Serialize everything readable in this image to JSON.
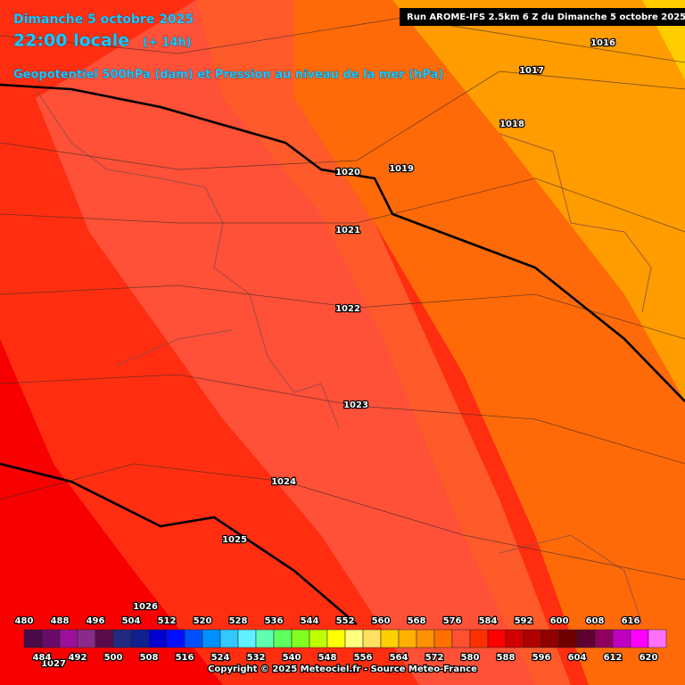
{
  "header": {
    "date": "Dimanche 5 octobre 2025",
    "time": "22:00 locale",
    "lead": "(+ 14h)",
    "parameter": "Geopotentiel 500hPa (dam) et Pression au niveau de la mer (hPa)",
    "run": "Run AROME-IFS 2.5km 6 Z du Dimanche 5 octobre 2025"
  },
  "isobars": [
    1016,
    1017,
    1018,
    1019,
    1020,
    1021,
    1022,
    1023,
    1024,
    1025,
    1026,
    1027
  ],
  "legend": {
    "labels": [
      480,
      484,
      488,
      492,
      496,
      500,
      504,
      508,
      512,
      516,
      520,
      524,
      528,
      532,
      536,
      540,
      544,
      548,
      552,
      556,
      560,
      564,
      568,
      572,
      576,
      580,
      584,
      588,
      592,
      596,
      600,
      604,
      608,
      612,
      616,
      620
    ],
    "colors": [
      "#4a0a4a",
      "#6a0a6a",
      "#9a109a",
      "#8a2a8a",
      "#5a0a4a",
      "#202a80",
      "#10208f",
      "#0000d0",
      "#0010ff",
      "#0050ff",
      "#0090ff",
      "#30c8ff",
      "#60f0ff",
      "#60ffb0",
      "#60ff60",
      "#80ff20",
      "#c0ff00",
      "#ffff00",
      "#ffff80",
      "#ffe060",
      "#ffd000",
      "#ffb000",
      "#ff9000",
      "#ff7000",
      "#ff5030",
      "#ff3000",
      "#ff0000",
      "#d00000",
      "#b00000",
      "#900000",
      "#700000",
      "#600030",
      "#900060",
      "#c000c0",
      "#ff00ff",
      "#ff70ff"
    ]
  },
  "footer": {
    "copyright": "Copyright © 2025 Meteociel.fr - Source Meteo-France"
  }
}
